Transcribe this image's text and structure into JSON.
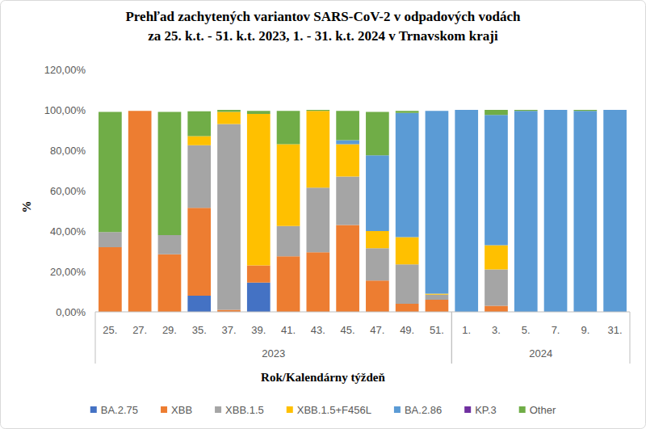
{
  "chart_data": {
    "type": "bar",
    "stacked": true,
    "grid": false,
    "legend": "bottom",
    "title": "Prehľad zachytených variantov   SARS-CoV-2 v odpadových vodách\nza 25. k.t.  - 51. k.t. 2023, 1. - 31. k.t. 2024 v Trnavskom kraji",
    "y_label": "%",
    "x_label": "Rok/Kalendárny týždeň",
    "categories": [
      "25.",
      "27.",
      "29.",
      "35.",
      "37.",
      "39.",
      "41.",
      "43.",
      "45.",
      "47.",
      "49.",
      "51.",
      "1.",
      "3.",
      "5.",
      "7.",
      "9.",
      "31."
    ],
    "x_groups": [
      {
        "label": "2023",
        "start": 0,
        "end": 11
      },
      {
        "label": "2024",
        "start": 12,
        "end": 17
      }
    ],
    "ylim": [
      0,
      120
    ],
    "yticks": [
      {
        "value": 0,
        "label": "0,00%"
      },
      {
        "value": 20,
        "label": "20,00%"
      },
      {
        "value": 40,
        "label": "40,00%"
      },
      {
        "value": 60,
        "label": "60,00%"
      },
      {
        "value": 80,
        "label": "80,00%"
      },
      {
        "value": 100,
        "label": "100,00%"
      },
      {
        "value": 120,
        "label": "120,00%"
      }
    ],
    "series": [
      {
        "name": "BA.2.75",
        "color": "#4472c4",
        "values": [
          0,
          0,
          0,
          8,
          0,
          14.5,
          0,
          0,
          0,
          0,
          0,
          0,
          0,
          0,
          0,
          0,
          0,
          0
        ]
      },
      {
        "name": "XBB",
        "color": "#ed7d31",
        "values": [
          32,
          99.5,
          28.5,
          43.5,
          1,
          8.5,
          27.5,
          29.5,
          43,
          15.5,
          4,
          6,
          0,
          3,
          0,
          0,
          0,
          0
        ]
      },
      {
        "name": "XBB.1.5",
        "color": "#a5a5a5",
        "values": [
          7.5,
          0,
          9.5,
          31,
          92,
          0,
          15,
          32,
          24,
          16,
          19.5,
          2.5,
          0,
          18,
          0,
          0,
          0,
          0
        ]
      },
      {
        "name": "XBB.1.5+F456L",
        "color": "#ffc000",
        "values": [
          0,
          0,
          0,
          4.5,
          6,
          75,
          40.5,
          38,
          16,
          8.5,
          13.5,
          0.5,
          0,
          12,
          0,
          0,
          0,
          0
        ]
      },
      {
        "name": "BA.2.86",
        "color": "#5b9bd5",
        "values": [
          0,
          0,
          0,
          0,
          0,
          0,
          0,
          0,
          2,
          37.5,
          61.5,
          90.5,
          100,
          64.5,
          99.5,
          100,
          99.5,
          100
        ]
      },
      {
        "name": "KP.3",
        "color": "#7030a0",
        "values": [
          0,
          0,
          0,
          0,
          0,
          0,
          0,
          0,
          0,
          0,
          0,
          0,
          0,
          0,
          0,
          0,
          0,
          0
        ]
      },
      {
        "name": "Other",
        "color": "#70ad47",
        "values": [
          59.5,
          0,
          61,
          12.3,
          1,
          1.5,
          16.5,
          0.5,
          14.5,
          21.5,
          1,
          0,
          0,
          2.5,
          0.5,
          0,
          0.5,
          0
        ]
      }
    ]
  }
}
